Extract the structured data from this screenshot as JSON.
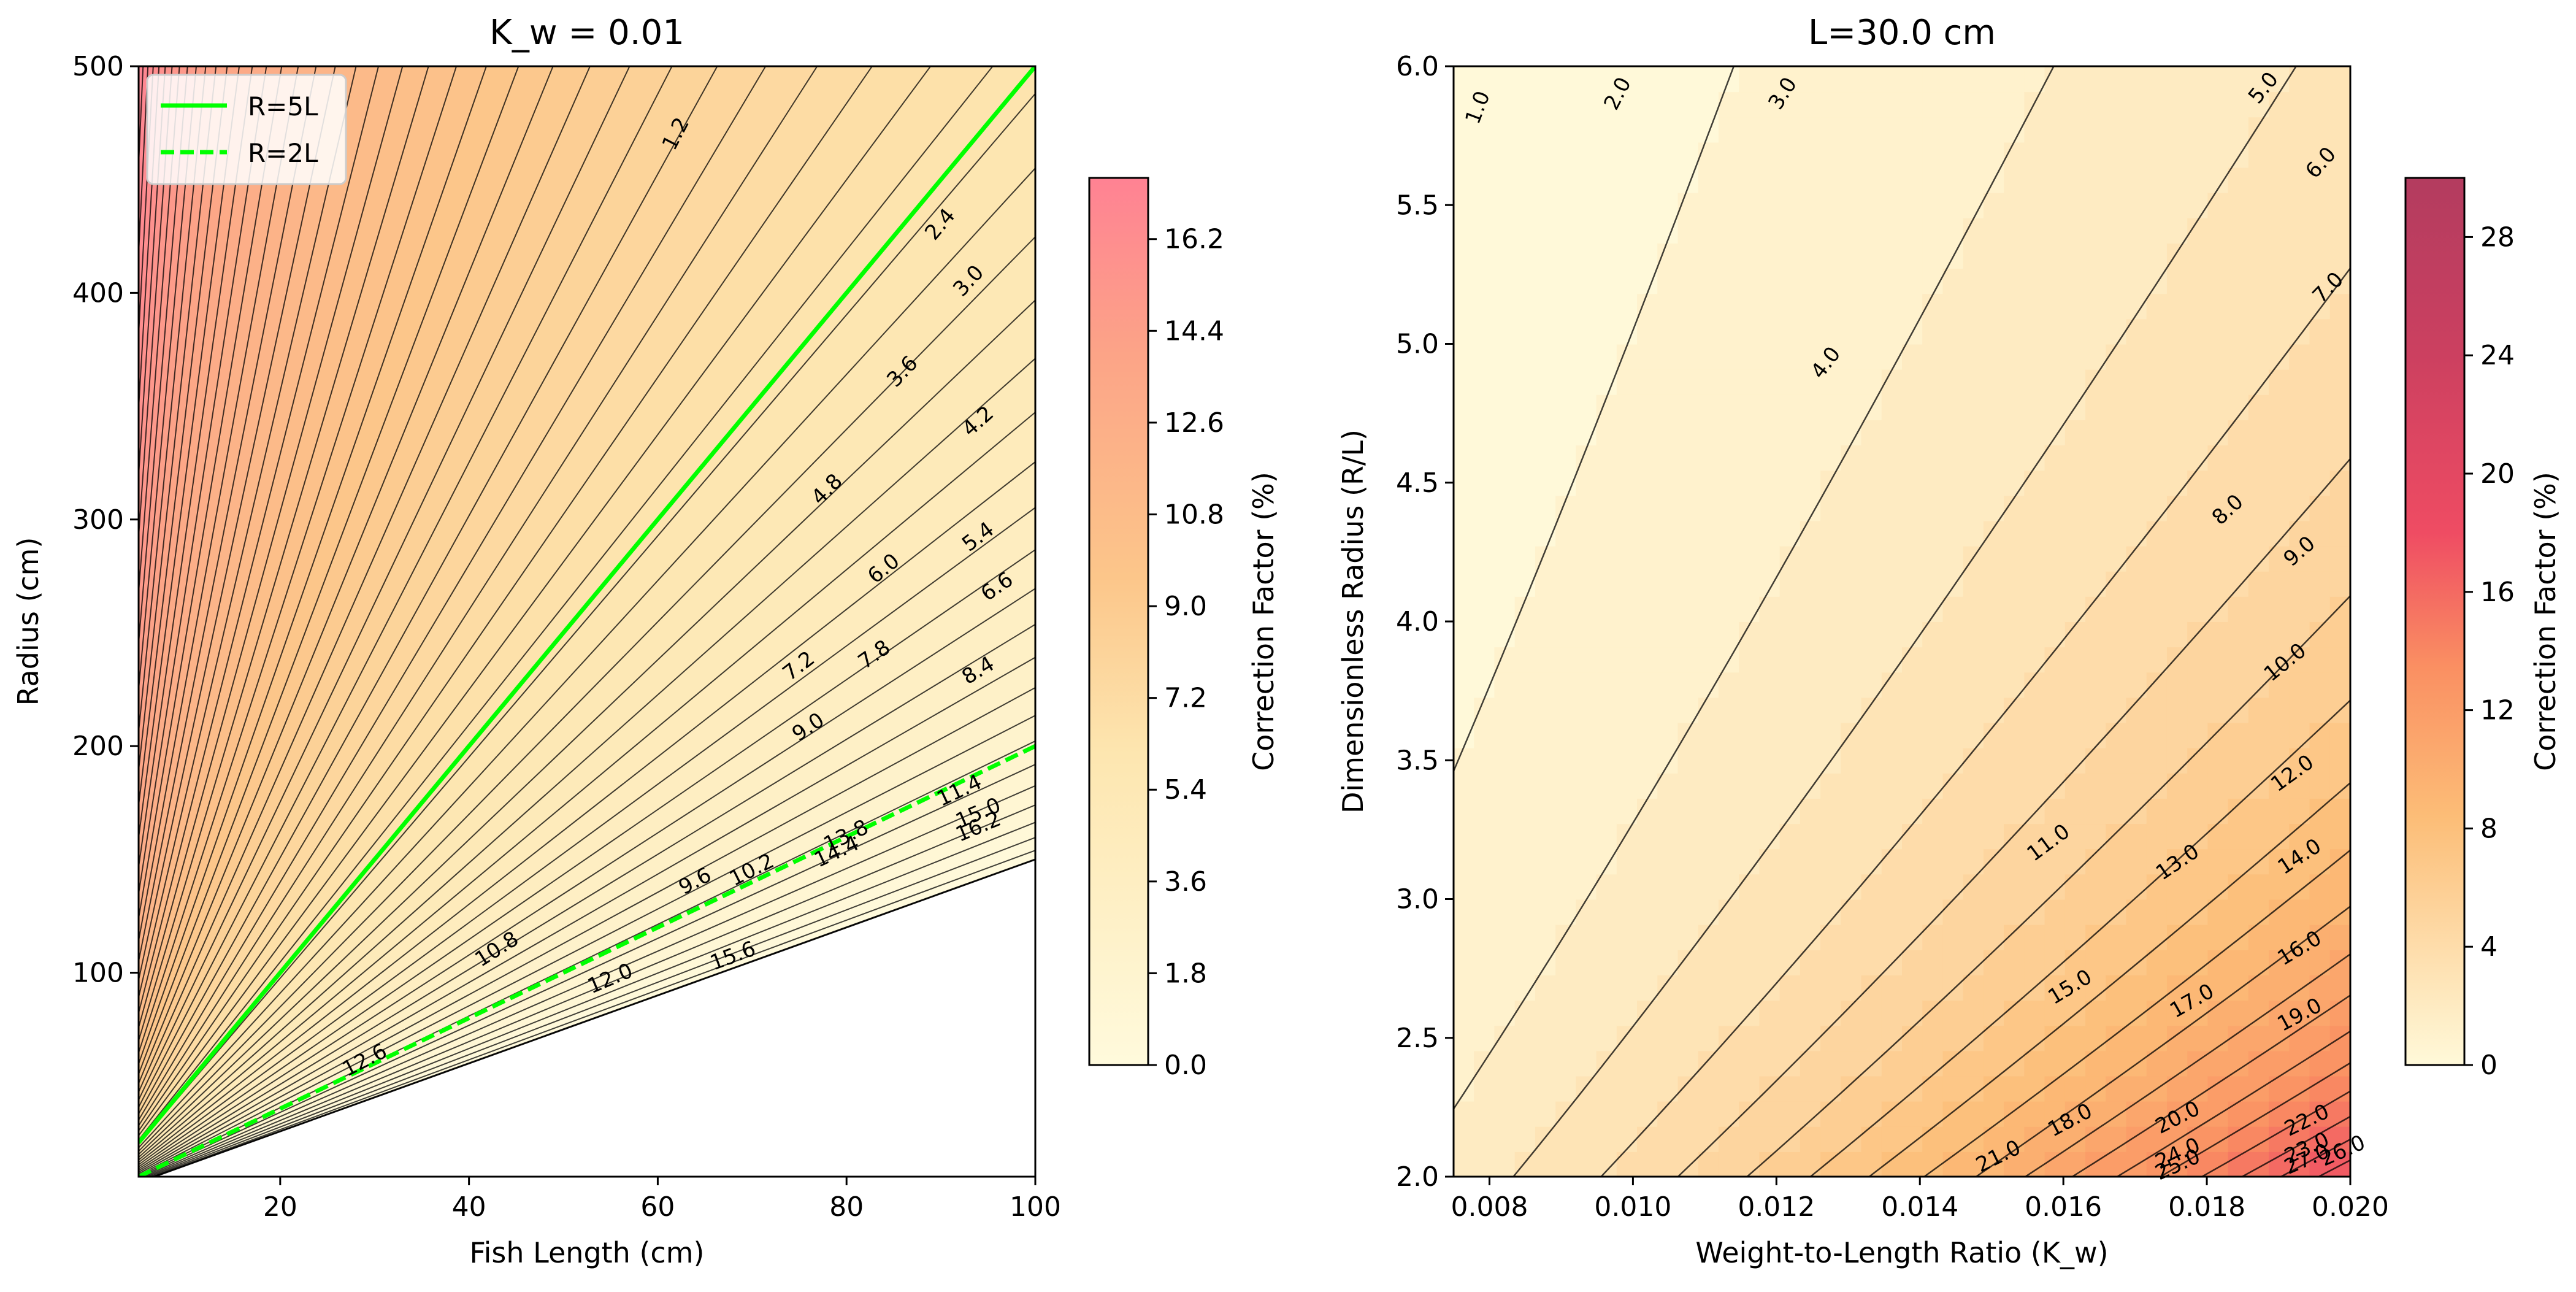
{
  "chart_data": [
    {
      "type": "contour",
      "title": "K_w = 0.01",
      "xlabel": "Fish Length (cm)",
      "ylabel": "Radius (cm)",
      "xlim": [
        5,
        100
      ],
      "ylim": [
        10,
        500
      ],
      "x_ticks": [
        "20",
        "40",
        "60",
        "80",
        "100"
      ],
      "y_ticks": [
        "100",
        "200",
        "300",
        "400",
        "500"
      ],
      "contour_labels": [
        "1.2",
        "2.4",
        "3.0",
        "3.6",
        "4.2",
        "4.8",
        "5.4",
        "6.0",
        "6.6",
        "7.2",
        "7.8",
        "8.4",
        "9.0",
        "9.6",
        "10.2",
        "10.8",
        "11.4",
        "12.0",
        "12.6",
        "13.8",
        "14.4",
        "15.0",
        "15.6",
        "16.2"
      ],
      "legend": {
        "position": "top-left",
        "entries": [
          {
            "label": "R=5L",
            "style": "solid",
            "color": "#00ff00",
            "ratio": 5
          },
          {
            "label": "R=2L",
            "style": "dashed",
            "color": "#00ff00",
            "ratio": 2
          }
        ]
      },
      "colorbar": {
        "label": "Correction Factor (%)",
        "range": [
          0,
          17.4
        ],
        "ticks": [
          "0.0",
          "1.8",
          "3.6",
          "5.4",
          "7.2",
          "9.0",
          "10.8",
          "12.6",
          "14.4",
          "16.2"
        ]
      }
    },
    {
      "type": "contour",
      "title": "L=30.0 cm",
      "xlabel": "Weight-to-Length Ratio (K_w)",
      "ylabel": "Dimensionless Radius (R/L)",
      "xlim": [
        0.0075,
        0.02
      ],
      "ylim": [
        2.0,
        6.0
      ],
      "x_ticks": [
        "0.008",
        "0.010",
        "0.012",
        "0.014",
        "0.016",
        "0.018",
        "0.020"
      ],
      "y_ticks": [
        "2.0",
        "2.5",
        "3.0",
        "3.5",
        "4.0",
        "4.5",
        "5.0",
        "5.5",
        "6.0"
      ],
      "contour_labels": [
        "1.0",
        "2.0",
        "3.0",
        "4.0",
        "5.0",
        "6.0",
        "7.0",
        "8.0",
        "9.0",
        "10.0",
        "11.0",
        "12.0",
        "13.0",
        "14.0",
        "15.0",
        "16.0",
        "17.0",
        "18.0",
        "19.0",
        "20.0",
        "21.0",
        "22.0",
        "23.0",
        "24.0",
        "25.0",
        "26.0",
        "27.0"
      ],
      "colorbar": {
        "label": "Correction Factor (%)",
        "range": [
          0,
          30
        ],
        "ticks": [
          "0",
          "4",
          "8",
          "12",
          "16",
          "20",
          "24",
          "28"
        ]
      }
    }
  ],
  "colors": {
    "low": "#fff9d9",
    "mid": "#fcbd77",
    "high": "#ef4c63",
    "top": "#b33c5f",
    "left_top": "#ff8293",
    "reference_line": "#00ff00"
  }
}
